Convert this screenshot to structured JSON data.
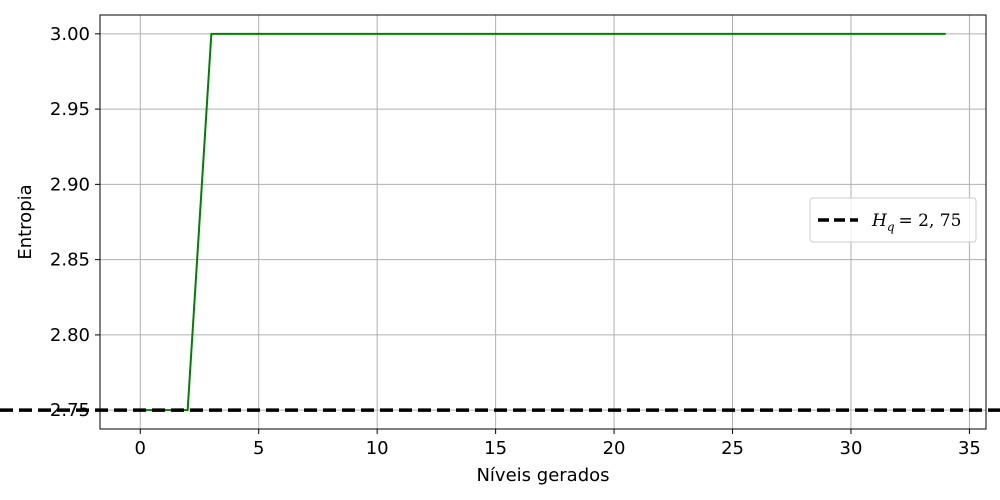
{
  "chart_data": {
    "type": "line",
    "xlabel": "Níveis gerados",
    "ylabel": "Entropia",
    "xlim": [
      -1.7,
      35.7
    ],
    "ylim": [
      2.7375,
      3.0125
    ],
    "xticks": [
      0,
      5,
      10,
      15,
      20,
      25,
      30,
      35
    ],
    "yticks": [
      2.75,
      2.8,
      2.85,
      2.9,
      2.95,
      3.0
    ],
    "xtick_labels": [
      "0",
      "5",
      "10",
      "15",
      "20",
      "25",
      "30",
      "35"
    ],
    "ytick_labels": [
      "2.75",
      "2.80",
      "2.85",
      "2.90",
      "2.95",
      "3.00"
    ],
    "grid": true,
    "legend_position": "center-right",
    "series": [
      {
        "color": "#008000",
        "style": "solid",
        "x": [
          0,
          1,
          2,
          3,
          4,
          5,
          6,
          7,
          8,
          9,
          10,
          11,
          12,
          13,
          14,
          15,
          16,
          17,
          18,
          19,
          20,
          21,
          22,
          23,
          24,
          25,
          26,
          27,
          28,
          29,
          30,
          31,
          32,
          33,
          34
        ],
        "y": [
          2.75,
          2.75,
          2.75,
          3.0,
          3.0,
          3.0,
          3.0,
          3.0,
          3.0,
          3.0,
          3.0,
          3.0,
          3.0,
          3.0,
          3.0,
          3.0,
          3.0,
          3.0,
          3.0,
          3.0,
          3.0,
          3.0,
          3.0,
          3.0,
          3.0,
          3.0,
          3.0,
          3.0,
          3.0,
          3.0,
          3.0,
          3.0,
          3.0,
          3.0,
          3.0
        ]
      }
    ],
    "reference_lines": [
      {
        "orientation": "horizontal",
        "y": 2.75,
        "color": "#000000",
        "style": "dashed",
        "label_prefix": "H",
        "label_subscript": "q",
        "label_suffix": "= 2, 75"
      }
    ]
  }
}
